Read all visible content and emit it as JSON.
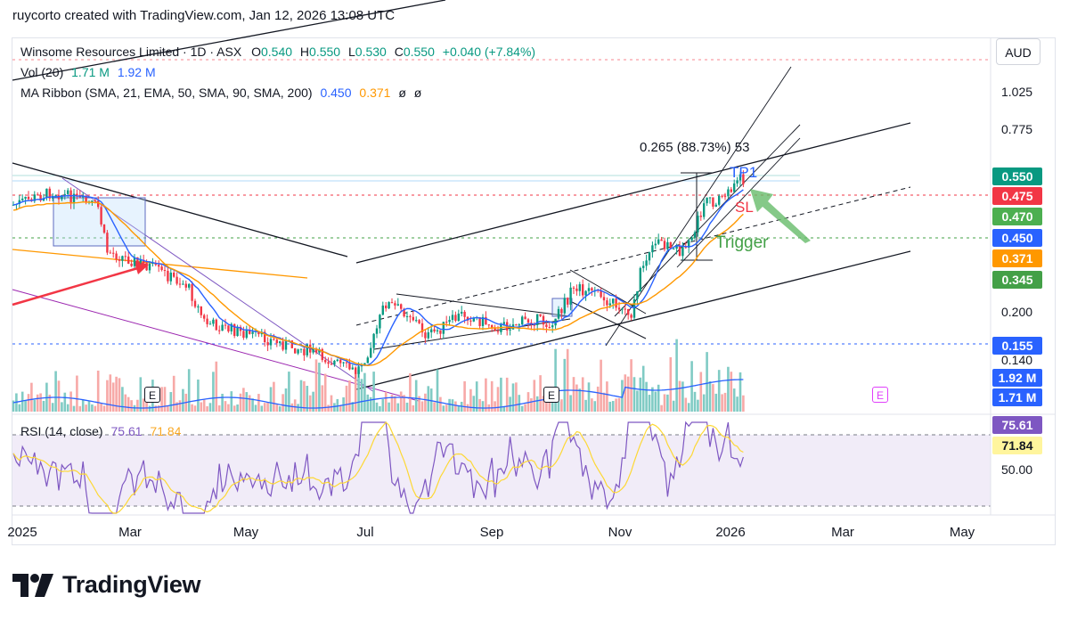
{
  "caption": "ruycorto created with TradingView.com, Jan 12, 2026 13:08 UTC",
  "legend": {
    "symbol": "Winsome Resources Limited · 1D · ASX",
    "o_label": "O",
    "o_val": "0.540",
    "h_label": "H",
    "h_val": "0.550",
    "l_label": "L",
    "l_val": "0.530",
    "c_label": "C",
    "c_val": "0.550",
    "change": "+0.040 (+7.84%)",
    "vol_label": "Vol (20)",
    "vol_a": "1.71 M",
    "vol_b": "1.92 M",
    "ma_label": "MA Ribbon (SMA, 21, EMA, 50, SMA, 90, SMA, 200)",
    "ma_a": "0.450",
    "ma_b": "0.371",
    "ma_c": "ø",
    "ma_d": "ø",
    "rsi_label": "RSI (14, close)",
    "rsi_a": "75.61",
    "rsi_b": "71.84"
  },
  "currency": "AUD",
  "price_axis": [
    "1.025",
    "0.775",
    "0.200",
    "0.140",
    "50.00"
  ],
  "price_tags": [
    {
      "label": "0.550",
      "color": "#089981",
      "name": "last-price-tag"
    },
    {
      "label": "0.475",
      "color": "#f23645",
      "name": "sl-price-tag"
    },
    {
      "label": "0.470",
      "color": "#4caf50",
      "name": "line-0470-tag"
    },
    {
      "label": "0.450",
      "color": "#2962ff",
      "name": "ma21-tag"
    },
    {
      "label": "0.371",
      "color": "#ff9800",
      "name": "ma50-tag"
    },
    {
      "label": "0.345",
      "color": "#43a047",
      "name": "trigger-tag"
    },
    {
      "label": "0.155",
      "color": "#2962ff",
      "name": "line-0155-tag"
    },
    {
      "label": "1.92 M",
      "color": "#2962ff",
      "name": "vol-ma-tag"
    },
    {
      "label": "1.71 M",
      "color": "#2962ff",
      "name": "vol-tag"
    },
    {
      "label": "75.61",
      "color": "#7e57c2",
      "name": "rsi-tag"
    },
    {
      "label": "71.84",
      "color": "#fff59d",
      "name": "rsi-ma-tag"
    }
  ],
  "time_axis": [
    "2025",
    "Mar",
    "May",
    "Jul",
    "Sep",
    "Nov",
    "2026",
    "Mar",
    "May"
  ],
  "annotations": {
    "measure": "0.265 (88.73%) 53",
    "tp1": "TP1",
    "sl": "SL",
    "trigger": "Trigger",
    "earnings": "E"
  },
  "colors": {
    "up": "#089981",
    "down": "#f23645",
    "ma21": "#2962ff",
    "ma50": "#ff9800",
    "rsi": "#7e57c2",
    "rsi_ma": "#fdd835",
    "trigger": "#4caf50",
    "sl": "#f23645",
    "tp1": "#2962ff"
  },
  "brand": "TradingView"
}
